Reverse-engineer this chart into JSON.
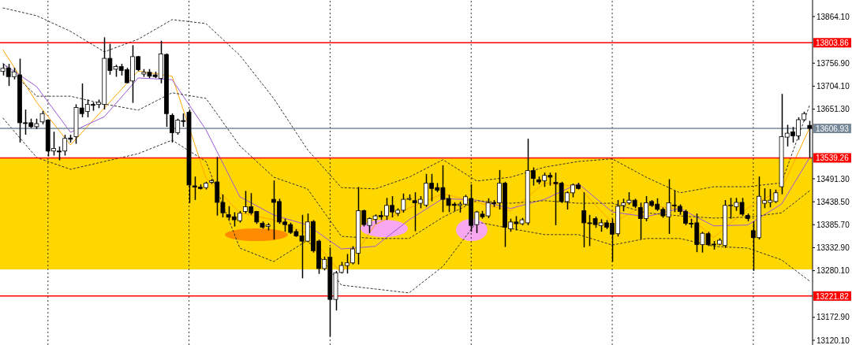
{
  "chart_data": {
    "type": "candlestick",
    "categories": [
      null,
      null,
      null,
      null,
      null,
      null,
      null,
      null,
      null,
      null,
      null,
      null,
      null,
      null,
      null,
      null,
      null,
      null,
      null,
      null,
      null,
      null,
      null,
      null,
      null,
      null,
      null,
      null,
      null,
      null,
      null,
      null,
      null,
      null,
      null,
      null,
      null,
      null,
      null,
      null,
      null,
      null,
      null,
      null,
      null,
      null,
      null,
      null,
      null,
      null,
      null,
      null,
      null,
      null,
      null,
      null,
      null,
      null,
      null,
      null,
      null,
      null,
      null,
      null,
      null,
      null,
      null,
      null,
      null,
      null,
      null,
      null,
      null,
      null,
      null,
      null,
      null,
      null,
      null,
      null,
      null,
      null,
      null,
      null,
      null,
      null,
      null,
      null,
      null,
      null,
      null,
      null,
      null,
      null,
      null,
      null,
      null,
      null,
      null,
      null,
      null,
      null,
      null,
      null,
      null,
      null,
      null,
      null,
      null,
      null,
      null,
      null,
      null,
      null,
      null,
      null,
      null,
      null,
      null,
      null,
      null,
      null,
      null,
      null,
      null,
      null,
      null,
      null,
      null,
      null,
      null,
      null,
      null,
      null,
      null,
      null,
      null,
      null,
      null,
      null,
      null,
      null,
      null,
      null
    ],
    "ohlc": [
      [
        13738,
        13754,
        13730,
        13745
      ],
      [
        13746,
        13754,
        13706,
        13726
      ],
      [
        13726,
        13745,
        13721,
        13737
      ],
      [
        13730,
        13766,
        13576,
        13620
      ],
      [
        13620,
        13649,
        13594,
        13619
      ],
      [
        13620,
        13628,
        13609,
        13611
      ],
      [
        13611,
        13628,
        13607,
        13618
      ],
      [
        13622,
        13646,
        13618,
        13641
      ],
      [
        13626,
        13626,
        13544,
        13555
      ],
      [
        13555,
        13598,
        13546,
        13561
      ],
      [
        13555,
        13564,
        13535,
        13553
      ],
      [
        13555,
        13591,
        13546,
        13584
      ],
      [
        13585,
        13591,
        13576,
        13582
      ],
      [
        13588,
        13661,
        13573,
        13655
      ],
      [
        13654,
        13709,
        13634,
        13641
      ],
      [
        13646,
        13672,
        13634,
        13662
      ],
      [
        13662,
        13666,
        13649,
        13660
      ],
      [
        13662,
        13672,
        13655,
        13667
      ],
      [
        13662,
        13815,
        13652,
        13768
      ],
      [
        13768,
        13800,
        13732,
        13740
      ],
      [
        13743,
        13752,
        13727,
        13749
      ],
      [
        13749,
        13754,
        13730,
        13740
      ],
      [
        13742,
        13745,
        13712,
        13712
      ],
      [
        13716,
        13797,
        13667,
        13772
      ],
      [
        13772,
        13772,
        13740,
        13742
      ],
      [
        13732,
        13742,
        13727,
        13736
      ],
      [
        13736,
        13742,
        13724,
        13727
      ],
      [
        13730,
        13736,
        13724,
        13726
      ],
      [
        13722,
        13807,
        13712,
        13778
      ],
      [
        13777,
        13778,
        13612,
        13641
      ],
      [
        13637,
        13640,
        13576,
        13597
      ],
      [
        13597,
        13628,
        13594,
        13626
      ],
      [
        13625,
        13640,
        13612,
        13623
      ],
      [
        13644,
        13649,
        13437,
        13477
      ],
      [
        13475,
        13495,
        13444,
        13472
      ],
      [
        13472,
        13477,
        13468,
        13469
      ],
      [
        13471,
        13483,
        13468,
        13481
      ],
      [
        13483,
        13489,
        13481,
        13487
      ],
      [
        13484,
        13540,
        13408,
        13437
      ],
      [
        13437,
        13454,
        13404,
        13413
      ],
      [
        13409,
        13427,
        13398,
        13403
      ],
      [
        13404,
        13413,
        13383,
        13397
      ],
      [
        13395,
        13416,
        13392,
        13412
      ],
      [
        13416,
        13462,
        13413,
        13427
      ],
      [
        13427,
        13457,
        13410,
        13413
      ],
      [
        13416,
        13416,
        13389,
        13392
      ],
      [
        13389,
        13392,
        13378,
        13380
      ],
      [
        13382,
        13388,
        13374,
        13385
      ],
      [
        13444,
        13486,
        13353,
        13437
      ],
      [
        13439,
        13444,
        13389,
        13392
      ],
      [
        13392,
        13398,
        13371,
        13386
      ],
      [
        13386,
        13389,
        13366,
        13368
      ],
      [
        13370,
        13374,
        13359,
        13360
      ],
      [
        13360,
        13407,
        13264,
        13348
      ],
      [
        13348,
        13410,
        13347,
        13392
      ],
      [
        13393,
        13395,
        13323,
        13326
      ],
      [
        13348,
        13350,
        13274,
        13285
      ],
      [
        13285,
        13311,
        13282,
        13306
      ],
      [
        13311,
        13332,
        13130,
        13214
      ],
      [
        13214,
        13278,
        13190,
        13275
      ],
      [
        13276,
        13299,
        13275,
        13292
      ],
      [
        13292,
        13317,
        13275,
        13298
      ],
      [
        13298,
        13335,
        13296,
        13330
      ],
      [
        13320,
        13471,
        13296,
        13418
      ],
      [
        13418,
        13419,
        13383,
        13386
      ],
      [
        13384,
        13401,
        13368,
        13400
      ],
      [
        13398,
        13408,
        13389,
        13406
      ],
      [
        13407,
        13416,
        13398,
        13404
      ],
      [
        13406,
        13446,
        13398,
        13430
      ],
      [
        13430,
        13450,
        13404,
        13415
      ],
      [
        13412,
        13422,
        13407,
        13419
      ],
      [
        13419,
        13456,
        13415,
        13444
      ],
      [
        13444,
        13454,
        13443,
        13446
      ],
      [
        13441,
        13459,
        13372,
        13436
      ],
      [
        13435,
        13450,
        13425,
        13444
      ],
      [
        13431,
        13501,
        13428,
        13481
      ],
      [
        13481,
        13501,
        13441,
        13469
      ],
      [
        13471,
        13480,
        13462,
        13465
      ],
      [
        13471,
        13521,
        13416,
        13444
      ],
      [
        13446,
        13453,
        13416,
        13430
      ],
      [
        13433,
        13436,
        13418,
        13430
      ],
      [
        13430,
        13437,
        13415,
        13433
      ],
      [
        13433,
        13453,
        13431,
        13450
      ],
      [
        13446,
        13477,
        13371,
        13384
      ],
      [
        13386,
        13416,
        13368,
        13415
      ],
      [
        13410,
        13416,
        13401,
        13404
      ],
      [
        13406,
        13445,
        13402,
        13436
      ],
      [
        13436,
        13441,
        13428,
        13434
      ],
      [
        13436,
        13510,
        13422,
        13481
      ],
      [
        13481,
        13483,
        13336,
        13380
      ],
      [
        13376,
        13398,
        13371,
        13392
      ],
      [
        13392,
        13404,
        13374,
        13388
      ],
      [
        13388,
        13400,
        13386,
        13397
      ],
      [
        13390,
        13582,
        13386,
        13510
      ],
      [
        13510,
        13516,
        13477,
        13492
      ],
      [
        13489,
        13495,
        13480,
        13484
      ],
      [
        13487,
        13504,
        13474,
        13499
      ],
      [
        13499,
        13504,
        13477,
        13495
      ],
      [
        13483,
        13504,
        13386,
        13480
      ],
      [
        13481,
        13483,
        13437,
        13439
      ],
      [
        13439,
        13461,
        13422,
        13459
      ],
      [
        13459,
        13479,
        13450,
        13477
      ],
      [
        13477,
        13481,
        13468,
        13469
      ],
      [
        13418,
        13459,
        13335,
        13390
      ],
      [
        13390,
        13407,
        13338,
        13389
      ],
      [
        13400,
        13403,
        13380,
        13386
      ],
      [
        13384,
        13397,
        13371,
        13390
      ],
      [
        13390,
        13395,
        13377,
        13380
      ],
      [
        13389,
        13398,
        13302,
        13364
      ],
      [
        13365,
        13441,
        13360,
        13428
      ],
      [
        13430,
        13444,
        13418,
        13436
      ],
      [
        13436,
        13459,
        13433,
        13442
      ],
      [
        13442,
        13444,
        13425,
        13428
      ],
      [
        13425,
        13435,
        13354,
        13400
      ],
      [
        13400,
        13450,
        13395,
        13436
      ],
      [
        13439,
        13441,
        13428,
        13430
      ],
      [
        13433,
        13445,
        13419,
        13421
      ],
      [
        13421,
        13424,
        13403,
        13406
      ],
      [
        13404,
        13489,
        13366,
        13436
      ],
      [
        13431,
        13463,
        13416,
        13430
      ],
      [
        13428,
        13431,
        13410,
        13416
      ],
      [
        13416,
        13419,
        13386,
        13389
      ],
      [
        13389,
        13398,
        13380,
        13388
      ],
      [
        13390,
        13410,
        13324,
        13340
      ],
      [
        13340,
        13368,
        13323,
        13366
      ],
      [
        13365,
        13368,
        13338,
        13340
      ],
      [
        13341,
        13347,
        13330,
        13340
      ],
      [
        13341,
        13353,
        13340,
        13350
      ],
      [
        13338,
        13441,
        13334,
        13430
      ],
      [
        13430,
        13446,
        13401,
        13431
      ],
      [
        13427,
        13446,
        13419,
        13437
      ],
      [
        13437,
        13446,
        13407,
        13410
      ],
      [
        13407,
        13410,
        13395,
        13400
      ],
      [
        13372,
        13392,
        13281,
        13356
      ],
      [
        13356,
        13495,
        13353,
        13451
      ],
      [
        13435,
        13468,
        13425,
        13441
      ],
      [
        13437,
        13466,
        13427,
        13442
      ],
      [
        13439,
        13465,
        13437,
        13459
      ],
      [
        13473,
        13685,
        13457,
        13588
      ],
      [
        13587,
        13614,
        13567,
        13596
      ],
      [
        13599,
        13609,
        13576,
        13590
      ],
      [
        13590,
        13631,
        13582,
        13627
      ],
      [
        13627,
        13644,
        13625,
        13641
      ],
      [
        13614,
        13623,
        13541,
        13607
      ]
    ],
    "ylim": [
      13109.3,
      13902.1
    ],
    "yticks": [
      {
        "value": 13864.1,
        "label": "13864.10"
      },
      {
        "value": 13756.9,
        "label": "13756.90"
      },
      {
        "value": 13704.1,
        "label": "13704.10"
      },
      {
        "value": 13651.3,
        "label": "13651.30"
      },
      {
        "value": 13491.3,
        "label": "13491.30"
      },
      {
        "value": 13438.5,
        "label": "13438.50"
      },
      {
        "value": 13385.7,
        "label": "13385.70"
      },
      {
        "value": 13332.9,
        "label": "13332.90"
      },
      {
        "value": 13280.1,
        "label": "13280.10"
      },
      {
        "value": 13172.9,
        "label": "13172.90"
      },
      {
        "value": 13120.1,
        "label": "13120.10"
      }
    ],
    "grid": "x",
    "bands": [
      {
        "axis": "y",
        "from": 13283,
        "to": 13539.26,
        "color": "#ffd700"
      }
    ],
    "ref_lines": [
      {
        "axis": "y",
        "value": 13803.86,
        "label": "13803.86",
        "color": "#ff0000"
      },
      {
        "axis": "y",
        "value": 13606.93,
        "label": "13606.93",
        "color": "#778899"
      },
      {
        "axis": "y",
        "value": 13539.26,
        "label": "13539.26",
        "color": "#ff0000"
      },
      {
        "axis": "y",
        "value": 13221.82,
        "label": "13221.82",
        "color": "#ff0000"
      }
    ],
    "series": [
      {
        "type": "line",
        "color": "#ffa500",
        "line_style": "solid",
        "values": [
          13788,
          null,
          null,
          null,
          null,
          null,
          13667,
          null,
          null,
          null,
          null,
          null,
          13569,
          null,
          null,
          null,
          null,
          null,
          null,
          null,
          null,
          null,
          null,
          null,
          13739,
          null,
          null,
          null,
          null,
          null,
          13727,
          null,
          null,
          null,
          null,
          null,
          13493,
          null,
          null,
          null,
          null,
          null,
          13413,
          null,
          null,
          null,
          null,
          null,
          13397,
          null,
          null,
          null,
          null,
          null,
          13366,
          null,
          null,
          null,
          null,
          null,
          13274,
          null,
          null,
          null,
          null,
          null,
          13386,
          null,
          null,
          null,
          null,
          null,
          13424,
          null,
          null,
          null,
          null,
          null,
          13457,
          null,
          null,
          null,
          null,
          null,
          13437,
          null,
          null,
          null,
          null,
          null,
          13417,
          null,
          null,
          null,
          null,
          null,
          13482,
          null,
          null,
          null,
          null,
          null,
          13473,
          null,
          null,
          null,
          null,
          null,
          13390,
          null,
          null,
          null,
          null,
          null,
          13432,
          null,
          null,
          null,
          null,
          null,
          13421,
          null,
          null,
          null,
          null,
          null,
          13356,
          null,
          null,
          null,
          null,
          null,
          13424,
          null,
          null,
          null,
          null,
          null,
          13468,
          null,
          null,
          null,
          null,
          13609
        ]
      },
      {
        "type": "line",
        "color": "#9b59d9",
        "line_style": "solid",
        "values": [
          13756,
          null,
          null,
          null,
          null,
          null,
          13703,
          null,
          null,
          null,
          null,
          null,
          13598,
          null,
          null,
          null,
          null,
          null,
          13634,
          null,
          null,
          null,
          null,
          null,
          13723,
          null,
          null,
          null,
          null,
          null,
          13719,
          null,
          null,
          null,
          null,
          null,
          13604,
          null,
          null,
          null,
          null,
          null,
          13450,
          null,
          null,
          null,
          null,
          null,
          13408,
          null,
          null,
          null,
          null,
          null,
          13385,
          null,
          null,
          null,
          null,
          null,
          13330,
          null,
          null,
          null,
          null,
          null,
          13336,
          null,
          null,
          null,
          null,
          null,
          13397,
          null,
          null,
          null,
          null,
          null,
          13446,
          null,
          null,
          null,
          null,
          null,
          13442,
          null,
          null,
          null,
          null,
          null,
          13423,
          null,
          null,
          null,
          null,
          null,
          13444,
          null,
          null,
          null,
          null,
          null,
          13480,
          null,
          null,
          null,
          null,
          null,
          13415,
          null,
          null,
          null,
          null,
          null,
          13404,
          null,
          null,
          null,
          null,
          null,
          13423,
          null,
          null,
          null,
          null,
          null,
          13383,
          null,
          null,
          null,
          null,
          null,
          13385,
          null,
          null,
          null,
          null,
          null,
          13433,
          null,
          null,
          null,
          null,
          13540
        ]
      },
      {
        "type": "line",
        "color": "#333333",
        "line_style": "dashed",
        "values": [
          13884,
          null,
          null,
          null,
          null,
          null,
          13866,
          null,
          null,
          null,
          null,
          null,
          13830,
          null,
          null,
          null,
          null,
          null,
          13783,
          null,
          null,
          null,
          null,
          null,
          13812,
          null,
          null,
          null,
          null,
          null,
          13857,
          null,
          null,
          null,
          null,
          null,
          13848,
          null,
          null,
          null,
          null,
          null,
          13775,
          null,
          null,
          null,
          null,
          null,
          13676,
          null,
          null,
          null,
          null,
          null,
          13558,
          null,
          null,
          null,
          null,
          null,
          13471,
          null,
          null,
          null,
          null,
          null,
          13468,
          null,
          null,
          null,
          null,
          null,
          13495,
          null,
          null,
          null,
          null,
          null,
          13535,
          null,
          null,
          null,
          null,
          null,
          13486,
          null,
          null,
          null,
          null,
          null,
          13495,
          null,
          null,
          null,
          null,
          null,
          13518,
          null,
          null,
          null,
          null,
          null,
          13531,
          null,
          null,
          null,
          null,
          null,
          13537,
          null,
          null,
          null,
          null,
          null,
          13495,
          null,
          null,
          null,
          null,
          null,
          13459,
          null,
          null,
          null,
          null,
          null,
          13473,
          null,
          null,
          null,
          null,
          null,
          13473,
          null,
          null,
          null,
          null,
          null,
          13482,
          null,
          null,
          null,
          null,
          13661
        ]
      },
      {
        "type": "line",
        "color": "#333333",
        "line_style": "dashed",
        "values": [
          13757,
          null,
          null,
          null,
          null,
          null,
          13681,
          null,
          null,
          null,
          null,
          null,
          13681,
          null,
          null,
          null,
          null,
          null,
          13663,
          null,
          null,
          null,
          null,
          null,
          13649,
          null,
          null,
          null,
          null,
          null,
          13689,
          null,
          null,
          null,
          null,
          null,
          13676,
          null,
          null,
          null,
          null,
          null,
          13567,
          null,
          null,
          null,
          null,
          null,
          13495,
          null,
          null,
          null,
          null,
          null,
          13468,
          null,
          null,
          null,
          null,
          null,
          13359,
          null,
          null,
          null,
          null,
          null,
          13354,
          null,
          null,
          null,
          null,
          null,
          13354,
          null,
          null,
          null,
          null,
          null,
          13403,
          null,
          null,
          null,
          null,
          null,
          13441,
          null,
          null,
          null,
          null,
          null,
          13435,
          null,
          null,
          null,
          null,
          null,
          13441,
          null,
          null,
          null,
          null,
          null,
          13435,
          null,
          null,
          null,
          null,
          null,
          13435,
          null,
          null,
          null,
          null,
          null,
          13413,
          null,
          null,
          null,
          null,
          null,
          13406,
          null,
          null,
          null,
          null,
          null,
          13401,
          null,
          null,
          null,
          null,
          null,
          13403,
          null,
          null,
          null,
          null,
          null,
          13413,
          null,
          null,
          null,
          null,
          13464
        ]
      },
      {
        "type": "line",
        "color": "#333333",
        "line_style": "dashed",
        "values": [
          13631,
          null,
          null,
          null,
          null,
          null,
          13540,
          null,
          null,
          null,
          null,
          null,
          13513,
          null,
          null,
          null,
          null,
          null,
          13531,
          null,
          null,
          null,
          null,
          null,
          13549,
          null,
          null,
          null,
          null,
          null,
          13580,
          null,
          null,
          null,
          null,
          null,
          13531,
          null,
          null,
          null,
          null,
          null,
          13332,
          null,
          null,
          null,
          null,
          null,
          13301,
          null,
          null,
          null,
          null,
          null,
          13350,
          null,
          null,
          null,
          null,
          null,
          13247,
          null,
          null,
          null,
          null,
          null,
          13238,
          null,
          null,
          null,
          null,
          null,
          13229,
          null,
          null,
          null,
          null,
          null,
          13290,
          null,
          null,
          null,
          null,
          null,
          13392,
          null,
          null,
          null,
          null,
          null,
          13377,
          null,
          null,
          null,
          null,
          null,
          13363,
          null,
          null,
          null,
          null,
          null,
          13363,
          null,
          null,
          null,
          null,
          null,
          13339,
          null,
          null,
          null,
          null,
          null,
          13354,
          null,
          null,
          null,
          null,
          null,
          13354,
          null,
          null,
          null,
          null,
          null,
          13336,
          null,
          null,
          null,
          null,
          null,
          13332,
          null,
          null,
          null,
          null,
          null,
          13305,
          null,
          null,
          null,
          null,
          13256
        ]
      }
    ]
  }
}
